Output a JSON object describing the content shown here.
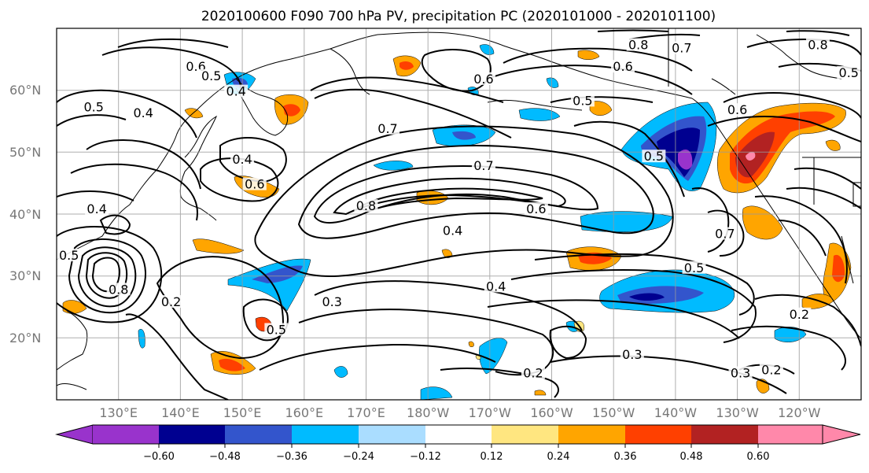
{
  "title": "2020100600 F090 700 hPa PV, precipitation PC (2020101000 - 2020101100)",
  "map": {
    "lon_range": [
      120,
      250
    ],
    "lat_range": [
      10,
      70
    ],
    "lat_ticks": [
      {
        "lat": 60,
        "label": "60°N"
      },
      {
        "lat": 50,
        "label": "50°N"
      },
      {
        "lat": 40,
        "label": "40°N"
      },
      {
        "lat": 30,
        "label": "30°N"
      },
      {
        "lat": 20,
        "label": "20°N"
      }
    ],
    "lon_ticks": [
      {
        "lon": 130,
        "label": "130°E"
      },
      {
        "lon": 140,
        "label": "140°E"
      },
      {
        "lon": 150,
        "label": "150°E"
      },
      {
        "lon": 160,
        "label": "160°E"
      },
      {
        "lon": 170,
        "label": "170°E"
      },
      {
        "lon": 180,
        "label": "180°W"
      },
      {
        "lon": 190,
        "label": "170°W"
      },
      {
        "lon": 200,
        "label": "160°W"
      },
      {
        "lon": 210,
        "label": "150°W"
      },
      {
        "lon": 220,
        "label": "140°W"
      },
      {
        "lon": 230,
        "label": "130°W"
      },
      {
        "lon": 240,
        "label": "120°W"
      }
    ],
    "grid": true
  },
  "colorbar": {
    "ticks": [
      "−0.60",
      "−0.48",
      "−0.36",
      "−0.24",
      "−0.12",
      "0.12",
      "0.24",
      "0.36",
      "0.48",
      "0.60"
    ],
    "under_color": "#9933CC",
    "over_color": "#FF88AA",
    "colors": [
      "#000090",
      "#3355CC",
      "#00BBFF",
      "#AADDFF",
      "#FFFFFF",
      "#FFE680",
      "#FFA500",
      "#FF4000",
      "#B22222"
    ]
  },
  "contour_labels": [
    {
      "text": "0.6",
      "lon": 142.5,
      "lat": 63.5
    },
    {
      "text": "0.5",
      "lon": 145,
      "lat": 62
    },
    {
      "text": "0.4",
      "lon": 149,
      "lat": 59.5
    },
    {
      "text": "0.5",
      "lon": 126,
      "lat": 57
    },
    {
      "text": "0.4",
      "lon": 134,
      "lat": 56
    },
    {
      "text": "0.4",
      "lon": 150,
      "lat": 48.5
    },
    {
      "text": "0.6",
      "lon": 152,
      "lat": 44.5
    },
    {
      "text": "0.4",
      "lon": 126.5,
      "lat": 40.5
    },
    {
      "text": "0.5",
      "lon": 122,
      "lat": 33
    },
    {
      "text": "0.8",
      "lon": 130,
      "lat": 27.5
    },
    {
      "text": "0.2",
      "lon": 138.5,
      "lat": 25.5
    },
    {
      "text": "0.5",
      "lon": 155.5,
      "lat": 21
    },
    {
      "text": "0.3",
      "lon": 164.5,
      "lat": 25.5
    },
    {
      "text": "0.7",
      "lon": 173.5,
      "lat": 53.5
    },
    {
      "text": "0.8",
      "lon": 170,
      "lat": 41
    },
    {
      "text": "0.7",
      "lon": 189,
      "lat": 47.5
    },
    {
      "text": "0.4",
      "lon": 184,
      "lat": 37
    },
    {
      "text": "0.6",
      "lon": 197.5,
      "lat": 40.5
    },
    {
      "text": "0.4",
      "lon": 191,
      "lat": 28
    },
    {
      "text": "0.2",
      "lon": 197,
      "lat": 14
    },
    {
      "text": "0.3",
      "lon": 213,
      "lat": 17
    },
    {
      "text": "0.5",
      "lon": 205,
      "lat": 58
    },
    {
      "text": "0.6",
      "lon": 189,
      "lat": 61.5
    },
    {
      "text": "0.6",
      "lon": 211.5,
      "lat": 63.5
    },
    {
      "text": "0.8",
      "lon": 214,
      "lat": 67
    },
    {
      "text": "0.7",
      "lon": 221,
      "lat": 66.5
    },
    {
      "text": "0.5",
      "lon": 216.5,
      "lat": 49
    },
    {
      "text": "0.6",
      "lon": 230,
      "lat": 56.5
    },
    {
      "text": "0.7",
      "lon": 228,
      "lat": 36.5
    },
    {
      "text": "0.5",
      "lon": 223,
      "lat": 31
    },
    {
      "text": "0.2",
      "lon": 240,
      "lat": 23.5
    },
    {
      "text": "0.3",
      "lon": 230.5,
      "lat": 14
    },
    {
      "text": "0.2",
      "lon": 235.5,
      "lat": 14.5
    },
    {
      "text": "0.8",
      "lon": 243,
      "lat": 67
    },
    {
      "text": "0.5",
      "lon": 248,
      "lat": 62.5
    }
  ]
}
